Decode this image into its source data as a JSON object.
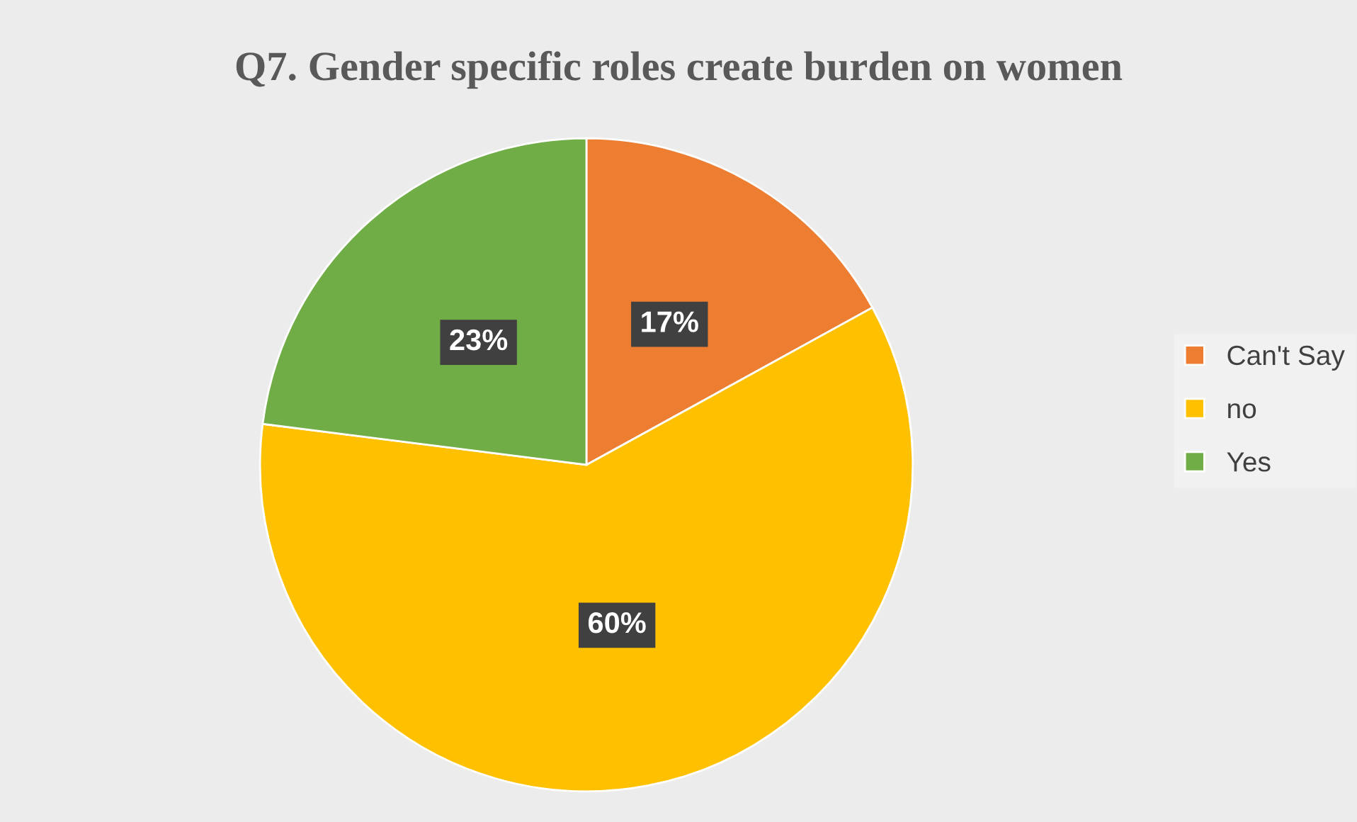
{
  "chart_data": {
    "type": "pie",
    "title": "Q7. Gender specific roles create burden on women",
    "categories": [
      "Can't Say",
      "no",
      "Yes"
    ],
    "values": [
      17,
      60,
      23
    ],
    "colors": [
      "#ed7d31",
      "#ffc000",
      "#70ad47"
    ],
    "value_labels": [
      "17%",
      "60%",
      "23%"
    ],
    "legend": "right"
  }
}
